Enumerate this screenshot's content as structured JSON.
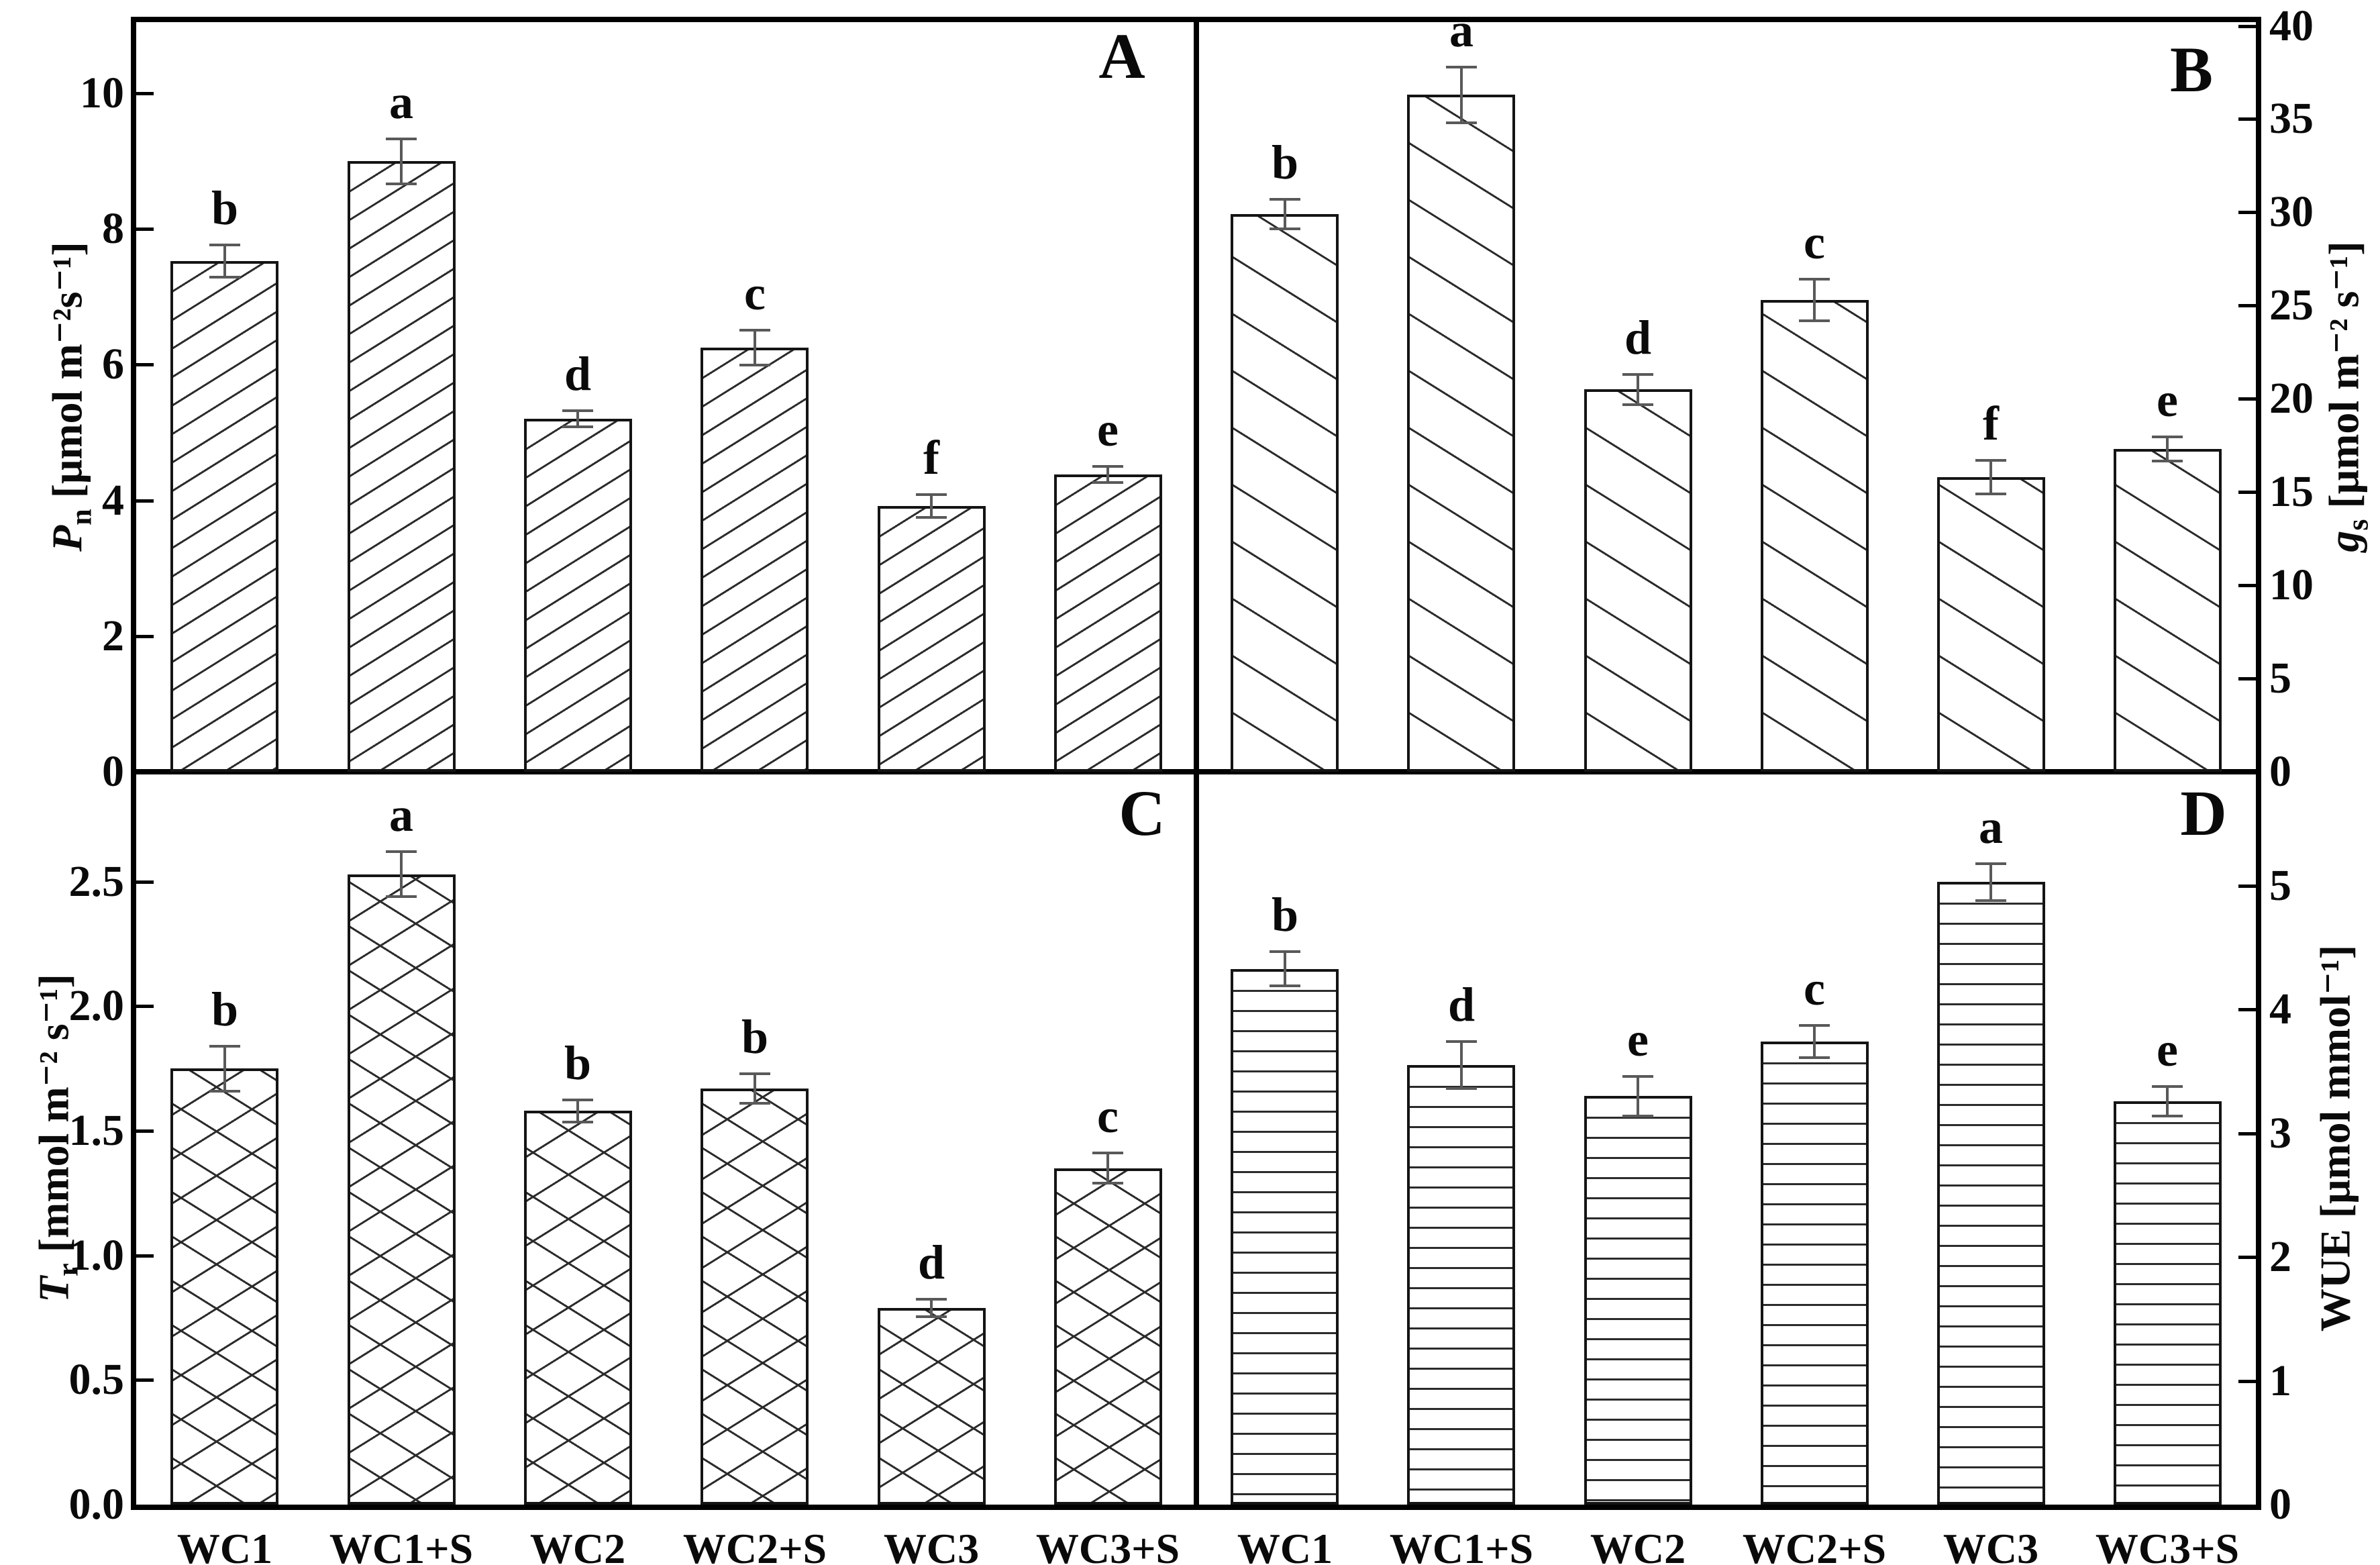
{
  "chart_data": {
    "type": "bar",
    "title": "",
    "grid": "off",
    "legend": "none",
    "categories": [
      "WC1",
      "WC1+S",
      "WC2",
      "WC2+S",
      "WC3",
      "WC3+S"
    ],
    "x_axis_label": "",
    "panels": [
      {
        "id": "A",
        "panel_label": "A",
        "hatch": "diag-up",
        "axis_side": "left",
        "y_axis": {
          "var": "P",
          "var_sub": "n",
          "var_italic": true,
          "units": "[μmol m⁻²s⁻¹]",
          "ticks": [
            0,
            2,
            4,
            6,
            8,
            10
          ],
          "tick_decimals": 0,
          "ylim": [
            0,
            11.05
          ]
        },
        "values": [
          7.53,
          9.0,
          5.2,
          6.25,
          3.92,
          4.38
        ],
        "errors": [
          0.24,
          0.33,
          0.12,
          0.26,
          0.17,
          0.12
        ],
        "sig_letters": [
          "b",
          "a",
          "d",
          "c",
          "f",
          "e"
        ]
      },
      {
        "id": "B",
        "panel_label": "B",
        "hatch": "diag-down",
        "axis_side": "right",
        "y_axis": {
          "var": "g",
          "var_sub": "s",
          "var_italic": true,
          "units": "[μmol m⁻² s⁻¹]",
          "ticks": [
            0,
            5,
            10,
            15,
            20,
            25,
            30,
            35,
            40
          ],
          "tick_decimals": 0,
          "ylim": [
            0,
            40.2
          ]
        },
        "values": [
          29.9,
          36.3,
          20.5,
          25.3,
          15.8,
          17.3
        ],
        "errors": [
          0.8,
          1.5,
          0.8,
          1.1,
          0.9,
          0.65
        ],
        "sig_letters": [
          "b",
          "a",
          "d",
          "c",
          "f",
          "e"
        ]
      },
      {
        "id": "C",
        "panel_label": "C",
        "hatch": "cross",
        "axis_side": "left",
        "y_axis": {
          "var": "T",
          "var_sub": "r",
          "var_italic": true,
          "units": "[mmol m⁻² s⁻¹]",
          "ticks": [
            0,
            0.5,
            1,
            1.5,
            2,
            2.5
          ],
          "tick_decimals": 1,
          "ylim": [
            0,
            2.93
          ]
        },
        "values": [
          1.75,
          2.53,
          1.58,
          1.67,
          0.79,
          1.35
        ],
        "errors": [
          0.09,
          0.09,
          0.045,
          0.06,
          0.035,
          0.06
        ],
        "sig_letters": [
          "b",
          "a",
          "b",
          "b",
          "d",
          "c"
        ]
      },
      {
        "id": "D",
        "panel_label": "D",
        "hatch": "horizontal",
        "axis_side": "right",
        "y_axis": {
          "var": "WUE",
          "var_sub": "",
          "var_italic": false,
          "units": "[μmol mmol⁻¹]",
          "ticks": [
            0,
            1,
            2,
            3,
            4,
            5
          ],
          "tick_decimals": 0,
          "ylim": [
            0,
            5.9
          ]
        },
        "values": [
          4.33,
          3.55,
          3.3,
          3.74,
          5.03,
          3.26
        ],
        "errors": [
          0.14,
          0.19,
          0.16,
          0.13,
          0.15,
          0.12
        ],
        "sig_letters": [
          "b",
          "d",
          "e",
          "c",
          "a",
          "e"
        ]
      }
    ]
  }
}
